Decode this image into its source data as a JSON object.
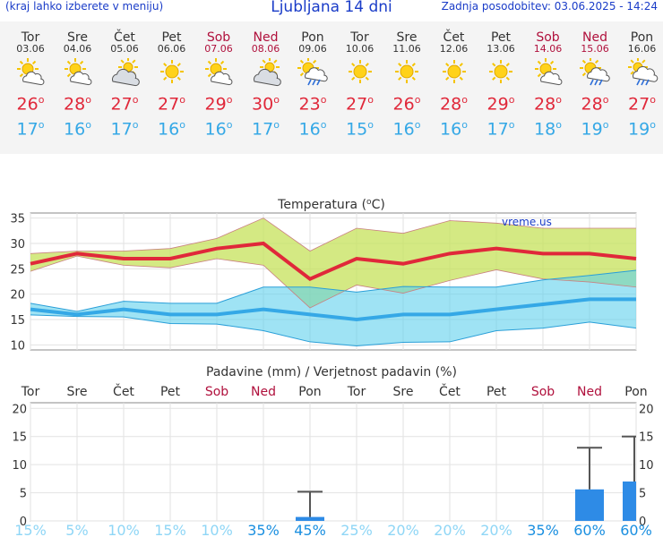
{
  "header": {
    "left_link": "(kraj lahko izberete v meniju)",
    "title": "Ljubljana 14 dni",
    "updated": "Zadnja posodobitev: 03.06.2025 - 14:24"
  },
  "days": [
    {
      "name": "Tor",
      "date": "03.06",
      "icon": "sun-cloud-icon",
      "tmax": "26",
      "tmin": "17",
      "weekend": false
    },
    {
      "name": "Sre",
      "date": "04.06",
      "icon": "sun-cloud-icon",
      "tmax": "28",
      "tmin": "16",
      "weekend": false
    },
    {
      "name": "Čet",
      "date": "05.06",
      "icon": "cloud-sun-icon",
      "tmax": "27",
      "tmin": "17",
      "weekend": false
    },
    {
      "name": "Pet",
      "date": "06.06",
      "icon": "sun-icon",
      "tmax": "27",
      "tmin": "16",
      "weekend": false
    },
    {
      "name": "Sob",
      "date": "07.06",
      "icon": "sun-cloud-icon",
      "tmax": "29",
      "tmin": "16",
      "weekend": true
    },
    {
      "name": "Ned",
      "date": "08.06",
      "icon": "cloud-sun-icon",
      "tmax": "30",
      "tmin": "17",
      "weekend": true
    },
    {
      "name": "Pon",
      "date": "09.06",
      "icon": "sun-cloud-rain-icon",
      "tmax": "23",
      "tmin": "16",
      "weekend": false
    },
    {
      "name": "Tor",
      "date": "10.06",
      "icon": "sun-icon",
      "tmax": "27",
      "tmin": "15",
      "weekend": false
    },
    {
      "name": "Sre",
      "date": "11.06",
      "icon": "sun-icon",
      "tmax": "26",
      "tmin": "16",
      "weekend": false
    },
    {
      "name": "Čet",
      "date": "12.06",
      "icon": "sun-icon",
      "tmax": "28",
      "tmin": "16",
      "weekend": false
    },
    {
      "name": "Pet",
      "date": "13.06",
      "icon": "sun-icon",
      "tmax": "29",
      "tmin": "17",
      "weekend": false
    },
    {
      "name": "Sob",
      "date": "14.06",
      "icon": "sun-cloud-icon",
      "tmax": "28",
      "tmin": "18",
      "weekend": true
    },
    {
      "name": "Ned",
      "date": "15.06",
      "icon": "sun-cloud-rain-icon",
      "tmax": "28",
      "tmin": "19",
      "weekend": true
    },
    {
      "name": "Pon",
      "date": "16.06",
      "icon": "cloud-rain-icon",
      "tmax": "27",
      "tmin": "19",
      "weekend": false
    }
  ],
  "degree_symbol": "o",
  "colors": {
    "max": "#e0283a",
    "min": "#35a8e6",
    "weekend": "#b0103c",
    "rain_bar": "#2e8be6",
    "prob_hi": "#1a8fe0",
    "prob_lo": "#8fd6f6"
  },
  "chart_data": [
    {
      "type": "line",
      "title": "Temperatura (",
      "title_unit": "C)",
      "title_deg": "o",
      "watermark": "vreme.us",
      "ylim": [
        9,
        36
      ],
      "yticks": [
        10,
        15,
        20,
        25,
        30,
        35
      ],
      "x": [
        0,
        1,
        2,
        3,
        4,
        5,
        6,
        7,
        8,
        9,
        10,
        11,
        12,
        13
      ],
      "series": [
        {
          "name": "max",
          "values": [
            26,
            28,
            27,
            27,
            29,
            30,
            23,
            27,
            26,
            28,
            29,
            28,
            28,
            27
          ]
        },
        {
          "name": "max_high",
          "values": [
            28,
            28.5,
            28.5,
            29,
            31,
            35,
            28.5,
            33,
            32,
            34.5,
            34,
            33,
            33,
            33
          ]
        },
        {
          "name": "max_low",
          "values": [
            24.5,
            27.5,
            25.7,
            25.2,
            27,
            25.7,
            17.3,
            21.8,
            20.2,
            22.7,
            24.8,
            23,
            22.4,
            21.4
          ]
        },
        {
          "name": "min",
          "values": [
            17,
            16,
            17,
            16,
            16,
            17,
            16,
            15,
            16,
            16,
            17,
            18,
            19,
            19
          ]
        },
        {
          "name": "min_high",
          "values": [
            18.2,
            16.6,
            18.6,
            18.2,
            18.2,
            21.4,
            21.4,
            20.4,
            21.5,
            21.4,
            21.4,
            22.8,
            23.7,
            24.7
          ]
        },
        {
          "name": "min_low",
          "values": [
            15.9,
            15.6,
            15.5,
            14.2,
            14.1,
            12.8,
            10.6,
            9.8,
            10.5,
            10.6,
            12.8,
            13.3,
            14.5,
            13.3
          ]
        }
      ]
    },
    {
      "type": "bar",
      "title": "Padavine (mm) / Verjetnost padavin (%)",
      "ylim": [
        0,
        21
      ],
      "yticks": [
        0,
        5,
        10,
        15,
        20
      ],
      "categories": [
        "Tor",
        "Sre",
        "Čet",
        "Pet",
        "Sob",
        "Ned",
        "Pon",
        "Tor",
        "Sre",
        "Čet",
        "Pet",
        "Sob",
        "Ned",
        "Pon"
      ],
      "weekend": [
        false,
        false,
        false,
        false,
        true,
        true,
        false,
        false,
        false,
        false,
        false,
        true,
        true,
        false
      ],
      "values": [
        0,
        0,
        0,
        0,
        0,
        0,
        0.7,
        0,
        0,
        0,
        0,
        0,
        5.6,
        7.0
      ],
      "error_high": [
        null,
        null,
        null,
        null,
        null,
        null,
        5.2,
        null,
        null,
        null,
        null,
        null,
        13,
        15
      ],
      "probability": [
        "15%",
        "5%",
        "10%",
        "15%",
        "10%",
        "35%",
        "45%",
        "25%",
        "20%",
        "20%",
        "20%",
        "35%",
        "60%",
        "60%"
      ],
      "probability_num": [
        15,
        5,
        10,
        15,
        10,
        35,
        45,
        25,
        20,
        20,
        20,
        35,
        60,
        60
      ]
    }
  ]
}
